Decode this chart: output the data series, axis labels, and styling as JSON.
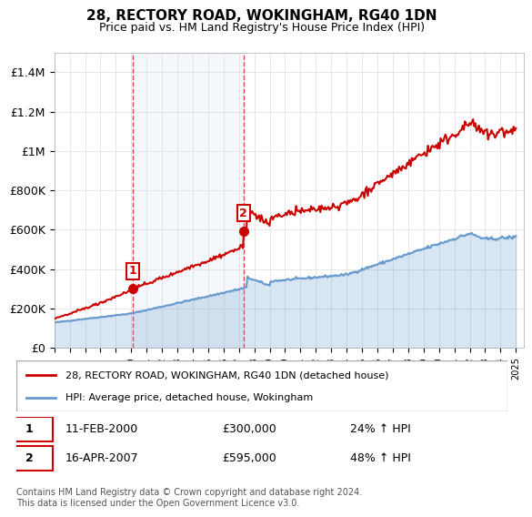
{
  "title": "28, RECTORY ROAD, WOKINGHAM, RG40 1DN",
  "subtitle": "Price paid vs. HM Land Registry's House Price Index (HPI)",
  "sale1_date": 2000.11,
  "sale1_price": 300000,
  "sale1_label": "11-FEB-2000",
  "sale1_hpi_pct": "24% ↑ HPI",
  "sale2_date": 2007.29,
  "sale2_price": 595000,
  "sale2_label": "16-APR-2007",
  "sale2_hpi_pct": "48% ↑ HPI",
  "legend_line1": "28, RECTORY ROAD, WOKINGHAM, RG40 1DN (detached house)",
  "legend_line2": "HPI: Average price, detached house, Wokingham",
  "footer": "Contains HM Land Registry data © Crown copyright and database right 2024.\nThis data is licensed under the Open Government Licence v3.0.",
  "red_color": "#cc0000",
  "blue_color": "#6699cc",
  "ylim": [
    0,
    1500000
  ],
  "yticks": [
    0,
    200000,
    400000,
    600000,
    800000,
    1000000,
    1200000,
    1400000
  ],
  "ytick_labels": [
    "£0",
    "£200K",
    "£400K",
    "£600K",
    "£800K",
    "£1M",
    "£1.2M",
    "£1.4M"
  ],
  "xlim_start": 1995.0,
  "xlim_end": 2025.5
}
